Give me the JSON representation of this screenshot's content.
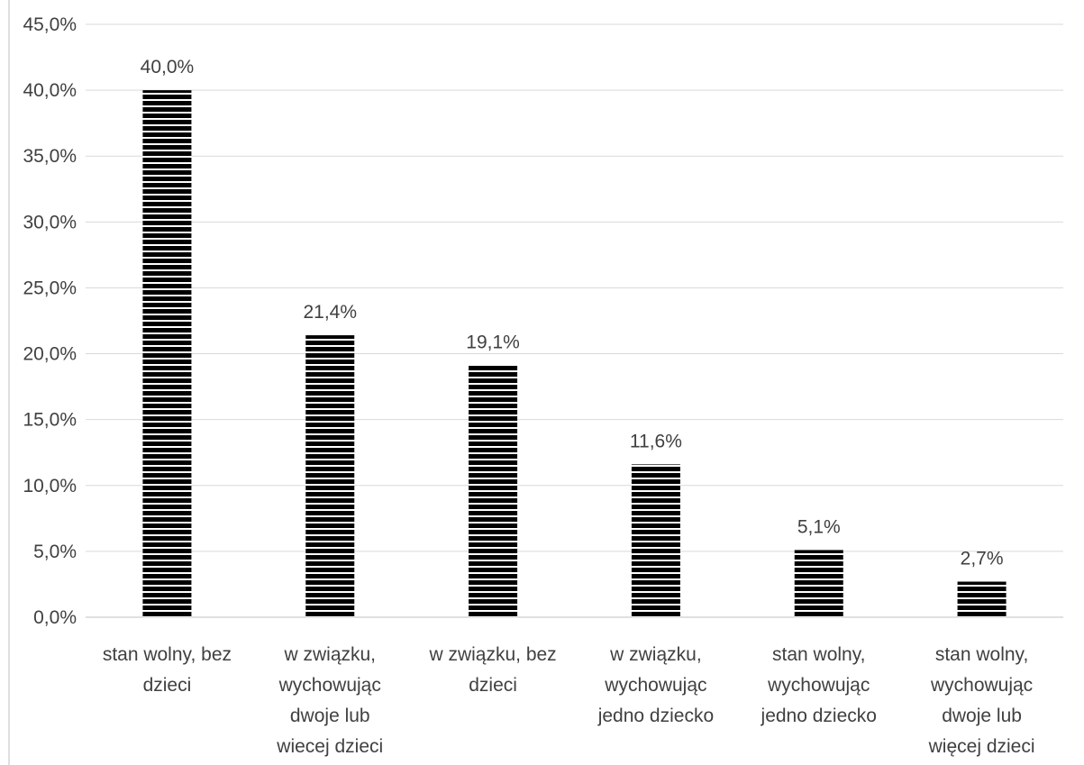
{
  "chart_data": {
    "type": "bar",
    "title": "",
    "xlabel": "",
    "ylabel": "",
    "ylim": [
      0,
      45
    ],
    "y_ticks": [
      "0,0%",
      "5,0%",
      "10,0%",
      "15,0%",
      "20,0%",
      "25,0%",
      "30,0%",
      "35,0%",
      "40,0%",
      "45,0%"
    ],
    "y_tick_values": [
      0,
      5,
      10,
      15,
      20,
      25,
      30,
      35,
      40,
      45
    ],
    "grid": true,
    "legend": "none",
    "bar_fill": "#000000",
    "bar_stripe": "#ffffff",
    "bar_pattern": "horizontal-stripes",
    "categories": [
      [
        "stan wolny, bez",
        "dzieci"
      ],
      [
        "w związku,",
        "wychowując",
        "dwoje lub",
        "wiecej dzieci"
      ],
      [
        "w związku, bez",
        "dzieci"
      ],
      [
        "w związku,",
        "wychowując",
        "jedno dziecko"
      ],
      [
        "stan wolny,",
        "wychowując",
        "jedno dziecko"
      ],
      [
        "stan wolny,",
        "wychowując",
        "dwoje lub",
        "więcej dzieci"
      ]
    ],
    "values": [
      40.0,
      21.4,
      19.1,
      11.6,
      5.1,
      2.7
    ],
    "data_labels": [
      "40,0%",
      "21,4%",
      "19,1%",
      "11,6%",
      "5,1%",
      "2,7%"
    ]
  }
}
